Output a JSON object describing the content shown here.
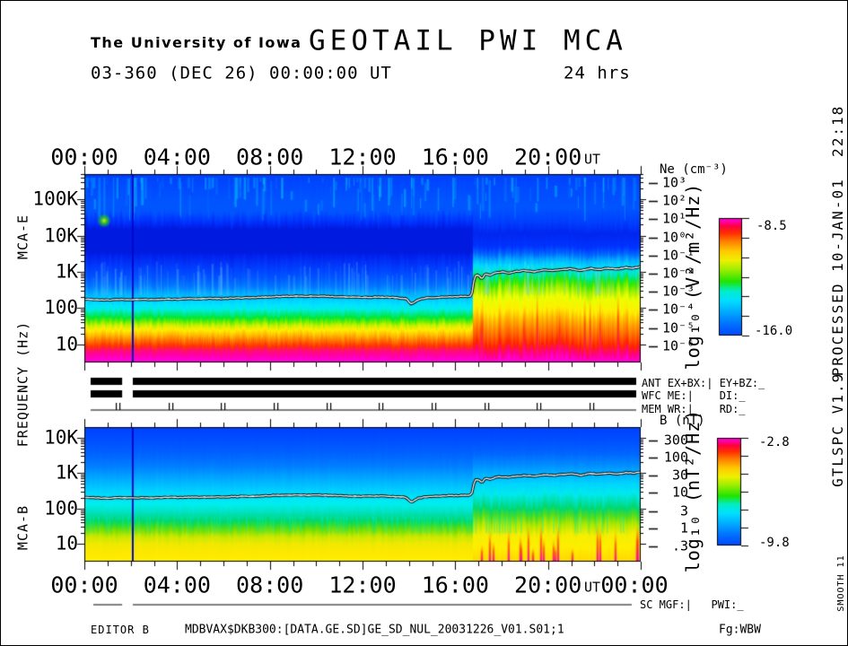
{
  "header": {
    "organization": "The University of Iowa",
    "title": "GEOTAIL PWI MCA",
    "date_line": "03-360 (DEC 26) 00:00:00 UT",
    "duration": "24 hrs"
  },
  "left_axis": {
    "plot_top_name": "MCA-E",
    "ylabel": "FREQUENCY (Hz)",
    "plot_bottom_name": "MCA-B"
  },
  "status_panel": {
    "rows": [
      "ANT EX+BX:| EY+BZ:_",
      "WFC ME:|    DI:_",
      "MEM WR:|    RD:_"
    ],
    "sc_row": "SC MGF:|   PWI:_"
  },
  "right_margin": {
    "processed": "PROCESSED 10-JAN-01  22:18",
    "version": "V1.9",
    "program": "GTLSPC",
    "smooth": "SMOOTH 11"
  },
  "footer": {
    "editor": "EDITOR B",
    "file": "MDBVAX$DKB300:[DATA.GE.SD]GE_SD_NUL_20031226_V01.S01;1",
    "fg": "Fg:WBW"
  },
  "chart_data": {
    "type": "heatmap",
    "title": "GEOTAIL PWI MCA",
    "subtitle": "03-360 (DEC 26) 00:00:00 UT, 24 hrs",
    "time_axis": {
      "hours": 24,
      "major_tick_hours": [
        0,
        4,
        8,
        12,
        16,
        20,
        24
      ],
      "minor_tick_step": 1,
      "top_labels": [
        "00:00",
        "04:00",
        "08:00",
        "12:00",
        "16:00",
        "20:00"
      ],
      "bottom_labels": [
        "00:00",
        "04:00",
        "08:00",
        "12:00",
        "16:00",
        "20:00",
        "00:00"
      ],
      "unit_label": "UT"
    },
    "event_hour": 16.75,
    "data_gap_hours": [
      1.63,
      2.09
    ],
    "marker_line_hour": 2.05,
    "mem_ticks": {
      "start_hour": 1.43,
      "step_hours": 2.272,
      "count": 10
    },
    "colorbar_stops": [
      [
        0.0,
        "#0046ff"
      ],
      [
        0.1,
        "#0072ff"
      ],
      [
        0.2,
        "#00aaff"
      ],
      [
        0.3,
        "#00e0ff"
      ],
      [
        0.38,
        "#00eec8"
      ],
      [
        0.46,
        "#22e400"
      ],
      [
        0.56,
        "#9cee00"
      ],
      [
        0.64,
        "#f0f000"
      ],
      [
        0.72,
        "#ffc800"
      ],
      [
        0.8,
        "#ff8000"
      ],
      [
        0.87,
        "#ff3000"
      ],
      [
        0.93,
        "#ff0040"
      ],
      [
        1.0,
        "#ff00f0"
      ]
    ],
    "plots": [
      {
        "id": "mca-e",
        "name": "MCA-E",
        "freq_range_hz": [
          3.16,
          501187
        ],
        "freq_ticks": [
          {
            "label": "100K",
            "hz": 100000
          },
          {
            "label": "10K",
            "hz": 10000
          },
          {
            "label": "1K",
            "hz": 1000
          },
          {
            "label": "100",
            "hz": 100
          },
          {
            "label": "10",
            "hz": 10
          }
        ],
        "colorbar": {
          "title": "log₁₀ (V²/m²/Hz)",
          "max_label": "-8.5",
          "min_label": "-16.0",
          "max": -8.5,
          "min": -16.0
        },
        "right_axis": {
          "title": "Ne (cm⁻³)",
          "ticks": [
            {
              "label": "10³",
              "value": 1000
            },
            {
              "label": "10²",
              "value": 100
            },
            {
              "label": "10¹",
              "value": 10
            },
            {
              "label": "10⁰",
              "value": 1
            },
            {
              "label": "10⁻¹",
              "value": 0.1
            },
            {
              "label": "10⁻²",
              "value": 0.01
            },
            {
              "label": "10⁻³",
              "value": 0.001
            },
            {
              "label": "10⁻⁴",
              "value": 0.0001
            },
            {
              "label": "10⁻⁵",
              "value": 1e-05
            },
            {
              "label": "10⁻⁶",
              "value": 1e-06
            }
          ]
        },
        "trace_hz": [
          [
            0,
            178
          ],
          [
            0.5,
            172
          ],
          [
            1,
            168
          ],
          [
            1.5,
            174
          ],
          [
            2,
            170
          ],
          [
            2.5,
            175
          ],
          [
            3,
            172
          ],
          [
            3.5,
            178
          ],
          [
            4,
            176
          ],
          [
            4.5,
            182
          ],
          [
            5,
            180
          ],
          [
            5.5,
            186
          ],
          [
            6,
            184
          ],
          [
            6.5,
            190
          ],
          [
            7,
            192
          ],
          [
            7.5,
            198
          ],
          [
            8,
            205
          ],
          [
            8.5,
            210
          ],
          [
            9,
            214
          ],
          [
            9.5,
            212
          ],
          [
            10,
            216
          ],
          [
            10.5,
            210
          ],
          [
            11,
            206
          ],
          [
            11.5,
            200
          ],
          [
            12,
            196
          ],
          [
            12.5,
            202
          ],
          [
            13,
            198
          ],
          [
            13.5,
            192
          ],
          [
            13.9,
            180
          ],
          [
            14.1,
            128
          ],
          [
            14.4,
            170
          ],
          [
            14.7,
            190
          ],
          [
            15,
            196
          ],
          [
            15.5,
            202
          ],
          [
            16,
            206
          ],
          [
            16.4,
            210
          ],
          [
            16.7,
            215
          ],
          [
            16.78,
            420
          ],
          [
            16.82,
            760
          ],
          [
            17,
            820
          ],
          [
            17.15,
            640
          ],
          [
            17.3,
            880
          ],
          [
            17.5,
            800
          ],
          [
            17.7,
            920
          ],
          [
            18,
            1000
          ],
          [
            18.3,
            930
          ],
          [
            18.6,
            1020
          ],
          [
            19,
            1090
          ],
          [
            19.4,
            1010
          ],
          [
            19.8,
            1120
          ],
          [
            20.2,
            1080
          ],
          [
            20.6,
            1160
          ],
          [
            21,
            1220
          ],
          [
            21.4,
            1080
          ],
          [
            21.8,
            1240
          ],
          [
            22.2,
            1160
          ],
          [
            22.6,
            1280
          ],
          [
            23,
            1200
          ],
          [
            23.4,
            1320
          ],
          [
            23.7,
            1260
          ],
          [
            24,
            1420
          ]
        ],
        "bands_pre": [
          [
            3.2,
            "#ff00dd"
          ],
          [
            5,
            "#ff00aa"
          ],
          [
            7,
            "#ff1166"
          ],
          [
            9,
            "#ff3300"
          ],
          [
            13,
            "#ff7700"
          ],
          [
            18,
            "#ffbb00"
          ],
          [
            25,
            "#ffee00"
          ],
          [
            33,
            "#ccee00"
          ],
          [
            42,
            "#66ee00"
          ],
          [
            55,
            "#00e833"
          ],
          [
            70,
            "#00e890"
          ],
          [
            90,
            "#00eedd"
          ],
          [
            120,
            "#00e5ff"
          ],
          [
            180,
            "#00ccff"
          ],
          [
            260,
            "#00aaff"
          ],
          [
            400,
            "#0077ff"
          ],
          [
            700,
            "#0055ff"
          ],
          [
            1200,
            "#0040ff"
          ],
          [
            2500,
            "#0026f0"
          ],
          [
            3500,
            "#001ae0"
          ],
          [
            15000,
            "#001ae0"
          ],
          [
            25000,
            "#0033ff"
          ],
          [
            45000,
            "#0055ff"
          ],
          [
            90000,
            "#0055ff"
          ],
          [
            200000,
            "#004bff"
          ],
          [
            500000,
            "#0040ff"
          ]
        ],
        "bands_post": [
          [
            3.2,
            "#ff00dd"
          ],
          [
            6,
            "#ff0088"
          ],
          [
            10,
            "#ff2200"
          ],
          [
            20,
            "#ff6600"
          ],
          [
            45,
            "#ffaa00"
          ],
          [
            90,
            "#ffee00"
          ],
          [
            200,
            "#eaff00"
          ],
          [
            350,
            "#99ee00"
          ],
          [
            550,
            "#33e800"
          ],
          [
            750,
            "#00e866"
          ],
          [
            1000,
            "#00e8c8"
          ],
          [
            1500,
            "#00d8ff"
          ],
          [
            2200,
            "#00aaff"
          ],
          [
            3200,
            "#0066ff"
          ],
          [
            5000,
            "#0033ff"
          ],
          [
            12000,
            "#0026f0"
          ],
          [
            25000,
            "#0040ff"
          ],
          [
            60000,
            "#0055ff"
          ],
          [
            200000,
            "#004bff"
          ],
          [
            500000,
            "#0040ff"
          ]
        ]
      },
      {
        "id": "mca-b",
        "name": "MCA-B",
        "freq_range_hz": [
          3.16,
          19953
        ],
        "freq_ticks": [
          {
            "label": "10K",
            "hz": 10000
          },
          {
            "label": "1K",
            "hz": 1000
          },
          {
            "label": "100",
            "hz": 100
          },
          {
            "label": "10",
            "hz": 10
          }
        ],
        "colorbar": {
          "title": "log₁₀ (nT²/Hz)",
          "max_label": "-2.8",
          "min_label": "-9.8",
          "max": -2.8,
          "min": -9.8
        },
        "right_axis": {
          "title": "B (nT)",
          "ticks": [
            {
              "label": "300",
              "value": 300
            },
            {
              "label": "100",
              "value": 100
            },
            {
              "label": "30",
              "value": 30
            },
            {
              "label": "10",
              "value": 10
            },
            {
              "label": "3",
              "value": 3
            },
            {
              "label": "1",
              "value": 1
            },
            {
              "label": ".3",
              "value": 0.3
            }
          ]
        },
        "trace_hz": [
          [
            0,
            205
          ],
          [
            0.5,
            200
          ],
          [
            1,
            196
          ],
          [
            1.5,
            202
          ],
          [
            2,
            198
          ],
          [
            2.5,
            204
          ],
          [
            3,
            200
          ],
          [
            3.5,
            206
          ],
          [
            4,
            204
          ],
          [
            4.5,
            210
          ],
          [
            5,
            208
          ],
          [
            5.5,
            214
          ],
          [
            6,
            212
          ],
          [
            6.5,
            218
          ],
          [
            7,
            220
          ],
          [
            7.5,
            226
          ],
          [
            8,
            232
          ],
          [
            8.5,
            238
          ],
          [
            9,
            240
          ],
          [
            9.5,
            236
          ],
          [
            10,
            242
          ],
          [
            10.5,
            236
          ],
          [
            11,
            230
          ],
          [
            11.5,
            224
          ],
          [
            12,
            220
          ],
          [
            12.5,
            226
          ],
          [
            13,
            222
          ],
          [
            13.5,
            216
          ],
          [
            13.9,
            205
          ],
          [
            14.1,
            150
          ],
          [
            14.4,
            195
          ],
          [
            14.7,
            215
          ],
          [
            15,
            220
          ],
          [
            15.5,
            228
          ],
          [
            16,
            232
          ],
          [
            16.4,
            238
          ],
          [
            16.7,
            240
          ],
          [
            16.78,
            380
          ],
          [
            16.82,
            620
          ],
          [
            17,
            680
          ],
          [
            17.15,
            520
          ],
          [
            17.3,
            720
          ],
          [
            17.5,
            660
          ],
          [
            17.7,
            750
          ],
          [
            18,
            800
          ],
          [
            18.3,
            760
          ],
          [
            18.6,
            820
          ],
          [
            19,
            860
          ],
          [
            19.4,
            820
          ],
          [
            19.8,
            890
          ],
          [
            20.2,
            860
          ],
          [
            20.6,
            910
          ],
          [
            21,
            950
          ],
          [
            21.4,
            870
          ],
          [
            21.8,
            970
          ],
          [
            22.2,
            920
          ],
          [
            22.6,
            1000
          ],
          [
            23,
            950
          ],
          [
            23.4,
            1030
          ],
          [
            23.7,
            990
          ],
          [
            24,
            1100
          ]
        ],
        "bands_pre": [
          [
            3.2,
            "#ffee00"
          ],
          [
            6,
            "#fce800"
          ],
          [
            10,
            "#f0e800"
          ],
          [
            16,
            "#c8e800"
          ],
          [
            24,
            "#7ce000"
          ],
          [
            34,
            "#30dc30"
          ],
          [
            45,
            "#00d870"
          ],
          [
            60,
            "#00dc9c"
          ],
          [
            85,
            "#00e4c8"
          ],
          [
            130,
            "#00eeee"
          ],
          [
            200,
            "#00e4f8"
          ],
          [
            350,
            "#00ccff"
          ],
          [
            700,
            "#00aaff"
          ],
          [
            1500,
            "#0080ff"
          ],
          [
            3500,
            "#0062ff"
          ],
          [
            8000,
            "#0050ff"
          ],
          [
            20000,
            "#0040ff"
          ]
        ],
        "bands_post": [
          [
            3.2,
            "#ffd800"
          ],
          [
            8,
            "#ffee00"
          ],
          [
            18,
            "#f4ee00"
          ],
          [
            35,
            "#b0e800"
          ],
          [
            60,
            "#50dc20"
          ],
          [
            100,
            "#00d870"
          ],
          [
            160,
            "#00e0b4"
          ],
          [
            260,
            "#00eaee"
          ],
          [
            500,
            "#00d4ff"
          ],
          [
            900,
            "#00b4ff"
          ],
          [
            1600,
            "#0090ff"
          ],
          [
            3500,
            "#0066ff"
          ],
          [
            8000,
            "#0050ff"
          ],
          [
            20000,
            "#0040ff"
          ]
        ]
      }
    ]
  }
}
